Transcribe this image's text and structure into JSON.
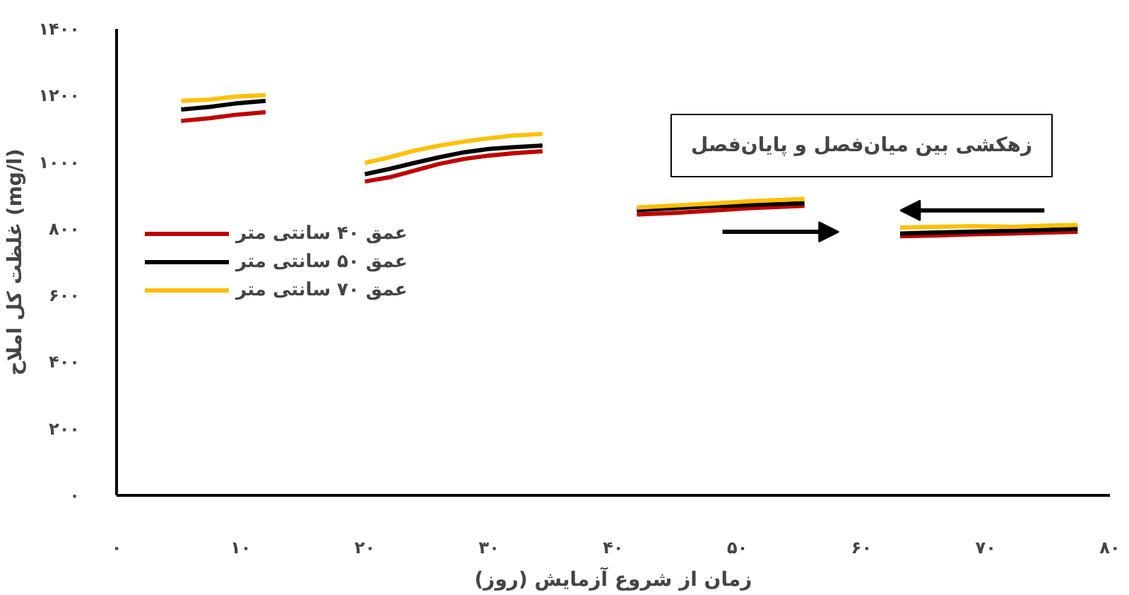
{
  "chart_data": {
    "type": "line",
    "xlabel": "زمان از شروع آزمایش (روز)",
    "ylabel": "غلظت کل املاح (mg/l)",
    "annotations": [
      "زهکشی بین میان‌فصل و پایان‌فصل"
    ],
    "x": [
      5.2,
      7.5,
      9.5,
      12.0,
      16,
      20,
      22,
      24,
      26,
      28,
      30,
      32,
      34.3,
      38,
      41.9,
      45,
      48,
      51,
      55.4,
      59,
      63.1,
      66,
      69,
      72,
      75,
      77.4
    ],
    "series": [
      {
        "name": "عمق ۴۰ سانتی متر",
        "color": "#c00000",
        "values": [
          1124,
          1132,
          1142,
          1150,
          null,
          942,
          955,
          975,
          995,
          1010,
          1020,
          1027,
          1033,
          null,
          843,
          848,
          855,
          862,
          869,
          null,
          778,
          780,
          784,
          786,
          789,
          791
        ]
      },
      {
        "name": "عمق ۵۰ سانتی متر",
        "color": "#000000",
        "values": [
          1158,
          1166,
          1176,
          1184,
          null,
          964,
          980,
          998,
          1015,
          1030,
          1040,
          1045,
          1050,
          null,
          856,
          862,
          868,
          872,
          877,
          null,
          786,
          789,
          792,
          794,
          797,
          800
        ]
      },
      {
        "name": "عمق ۷۰ سانتی متر",
        "color": "#ffc000",
        "values": [
          1184,
          1188,
          1197,
          1201,
          null,
          998,
          1015,
          1035,
          1050,
          1062,
          1072,
          1080,
          1085,
          null,
          864,
          870,
          876,
          883,
          890,
          null,
          804,
          806,
          808,
          806,
          810,
          812
        ]
      }
    ],
    "xlim": [
      0,
      80
    ],
    "ylim": [
      0,
      1400
    ],
    "xticks": [
      {
        "value": 0,
        "label": "۰"
      },
      {
        "value": 10,
        "label": "۱۰"
      },
      {
        "value": 20,
        "label": "۲۰"
      },
      {
        "value": 30,
        "label": "۳۰"
      },
      {
        "value": 40,
        "label": "۴۰"
      },
      {
        "value": 50,
        "label": "۵۰"
      },
      {
        "value": 60,
        "label": "۶۰"
      },
      {
        "value": 70,
        "label": "۷۰"
      },
      {
        "value": 80,
        "label": "۸۰"
      }
    ],
    "yticks": [
      {
        "value": 0,
        "label": "۰"
      },
      {
        "value": 200,
        "label": "۲۰۰"
      },
      {
        "value": 400,
        "label": "۴۰۰"
      },
      {
        "value": 600,
        "label": "۶۰۰"
      },
      {
        "value": 800,
        "label": "۸۰۰"
      },
      {
        "value": 1000,
        "label": "۱۰۰۰"
      },
      {
        "value": 1200,
        "label": "۱۲۰۰"
      },
      {
        "value": 1400,
        "label": "۱۴۰۰"
      }
    ],
    "grid": false,
    "legend": "left",
    "line_style": "solid"
  }
}
